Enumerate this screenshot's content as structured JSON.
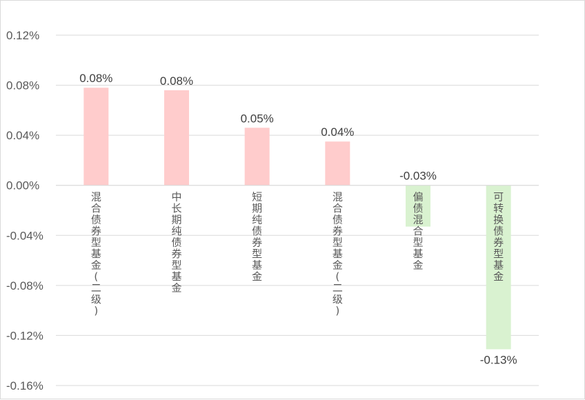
{
  "chart_data": {
    "type": "bar",
    "title": "",
    "xlabel": "",
    "ylabel": "",
    "ylim": [
      -0.16,
      0.12
    ],
    "yticks": [
      0.12,
      0.08,
      0.04,
      0.0,
      -0.04,
      -0.08,
      -0.12,
      -0.16
    ],
    "ytick_labels": [
      "0.12%",
      "0.08%",
      "0.04%",
      "0.00%",
      "-0.04%",
      "-0.08%",
      "-0.12%",
      "-0.16%"
    ],
    "grid": true,
    "categories": [
      "混合债券型基金(二级)",
      "中长期纯债券型基金",
      "短期纯债券型基金",
      "混合债券型基金(二级)",
      "偏债混合型基金",
      "可转换债券型基金"
    ],
    "values": [
      0.078,
      0.076,
      0.046,
      0.035,
      -0.033,
      -0.131
    ],
    "data_labels": [
      "0.08%",
      "0.08%",
      "0.05%",
      "0.04%",
      "-0.03%",
      "-0.13%"
    ],
    "colors": {
      "positive": "#ffcccc",
      "negative": "#d9f2d0",
      "grid": "#d9d9d9"
    }
  }
}
